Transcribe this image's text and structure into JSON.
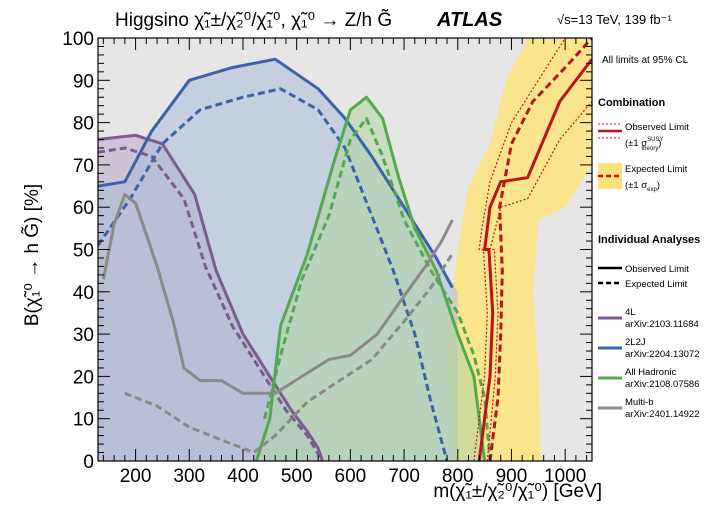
{
  "chart_data": {
    "type": "area",
    "title": "Higgsino χ̃₁±/χ̃₂⁰/χ̃₁⁰,  χ̃₁⁰ → Z/h G̃",
    "experiment": "ATLAS",
    "energy_label": "√s=13 TeV, 139 fb⁻¹",
    "xlabel": "m(χ̃₁±/χ̃₂⁰/χ̃₁⁰) [GeV]",
    "ylabel": "B(χ̃₁⁰ → h G̃) [%]",
    "xlim": [
      130,
      1050
    ],
    "ylim": [
      0,
      100
    ],
    "xticks": [
      200,
      300,
      400,
      500,
      600,
      700,
      800,
      900,
      1000
    ],
    "yticks": [
      0,
      10,
      20,
      30,
      40,
      50,
      60,
      70,
      80,
      90,
      100
    ],
    "grid": false,
    "legend_position": "right",
    "legend": {
      "cl_note": "All limits at 95% CL",
      "combination_header": "Combination",
      "observed_label": "Observed Limit",
      "observed_sub": "(±1 σ",
      "observed_sub_sup": "SUSY",
      "observed_sub_sub": "theory",
      "observed_sub_end": ")",
      "expected_label": "Expected Limit",
      "expected_sub": "(±1 σ",
      "expected_sub_sub": "exp",
      "expected_sub_end": ")",
      "individual_header": "Individual Analyses",
      "ind_observed": "Observed Limit",
      "ind_expected": "Expected Limit"
    },
    "series": [
      {
        "name": "4L",
        "ref": "arXiv:2103.11684",
        "color": "#7b5c8f",
        "fill": "#bba8c8",
        "observed": [
          [
            130,
            76
          ],
          [
            200,
            77
          ],
          [
            250,
            75
          ],
          [
            310,
            63
          ],
          [
            350,
            45
          ],
          [
            400,
            30
          ],
          [
            450,
            20
          ],
          [
            490,
            12
          ],
          [
            520,
            7
          ],
          [
            540,
            3
          ],
          [
            548,
            0
          ]
        ],
        "expected": [
          [
            130,
            73
          ],
          [
            180,
            74
          ],
          [
            230,
            72
          ],
          [
            290,
            62
          ],
          [
            330,
            46
          ],
          [
            380,
            32
          ],
          [
            430,
            22
          ],
          [
            480,
            12
          ],
          [
            520,
            6
          ],
          [
            548,
            0
          ]
        ],
        "region": [
          [
            130,
            0
          ],
          [
            130,
            76
          ],
          [
            200,
            77
          ],
          [
            250,
            75
          ],
          [
            310,
            63
          ],
          [
            350,
            45
          ],
          [
            400,
            30
          ],
          [
            450,
            20
          ],
          [
            490,
            12
          ],
          [
            520,
            7
          ],
          [
            540,
            3
          ],
          [
            548,
            0
          ]
        ]
      },
      {
        "name": "2L2J",
        "ref": "arXiv:2204.13072",
        "color": "#3a63a8",
        "fill": "#a7bcd9",
        "observed": [
          [
            130,
            65
          ],
          [
            180,
            66
          ],
          [
            230,
            78
          ],
          [
            300,
            90
          ],
          [
            380,
            93
          ],
          [
            460,
            95
          ],
          [
            540,
            88
          ],
          [
            590,
            81
          ],
          [
            640,
            72
          ],
          [
            700,
            60
          ],
          [
            760,
            48
          ],
          [
            790,
            41
          ]
        ],
        "expected": [
          [
            130,
            51
          ],
          [
            190,
            62
          ],
          [
            250,
            75
          ],
          [
            320,
            83
          ],
          [
            400,
            86
          ],
          [
            470,
            88
          ],
          [
            540,
            83
          ],
          [
            590,
            74
          ],
          [
            640,
            58
          ],
          [
            680,
            45
          ],
          [
            720,
            30
          ],
          [
            750,
            14
          ],
          [
            780,
            0
          ]
        ],
        "region": [
          [
            130,
            0
          ],
          [
            130,
            65
          ],
          [
            180,
            66
          ],
          [
            230,
            78
          ],
          [
            300,
            90
          ],
          [
            380,
            93
          ],
          [
            460,
            95
          ],
          [
            540,
            88
          ],
          [
            590,
            81
          ],
          [
            640,
            72
          ],
          [
            700,
            60
          ],
          [
            760,
            48
          ],
          [
            800,
            40
          ],
          [
            800,
            0
          ]
        ]
      },
      {
        "name": "All Hadronic",
        "ref": "arXiv:2108.07586",
        "color": "#55a84f",
        "fill": "#afd6a0",
        "observed": [
          [
            425,
            0
          ],
          [
            450,
            10
          ],
          [
            470,
            32
          ],
          [
            520,
            49
          ],
          [
            570,
            71
          ],
          [
            600,
            83
          ],
          [
            630,
            86
          ],
          [
            660,
            81
          ],
          [
            690,
            67
          ],
          [
            720,
            55
          ],
          [
            760,
            45
          ],
          [
            800,
            30
          ],
          [
            830,
            20
          ],
          [
            850,
            0
          ]
        ],
        "expected": [
          [
            440,
            10
          ],
          [
            470,
            25
          ],
          [
            510,
            43
          ],
          [
            560,
            58
          ],
          [
            600,
            76
          ],
          [
            630,
            81
          ],
          [
            660,
            72
          ],
          [
            700,
            57
          ],
          [
            750,
            45
          ],
          [
            800,
            35
          ],
          [
            830,
            25
          ],
          [
            850,
            15
          ],
          [
            860,
            0
          ]
        ],
        "region": [
          [
            425,
            0
          ],
          [
            450,
            10
          ],
          [
            470,
            32
          ],
          [
            520,
            49
          ],
          [
            570,
            71
          ],
          [
            600,
            83
          ],
          [
            630,
            86
          ],
          [
            660,
            81
          ],
          [
            690,
            67
          ],
          [
            720,
            55
          ],
          [
            760,
            45
          ],
          [
            800,
            30
          ],
          [
            830,
            20
          ],
          [
            850,
            0
          ]
        ]
      },
      {
        "name": "Multi-b",
        "ref": "arXiv:2401.14922",
        "color": "#8a8a8a",
        "observed": [
          [
            140,
            43
          ],
          [
            160,
            56
          ],
          [
            180,
            63
          ],
          [
            200,
            61
          ],
          [
            240,
            46
          ],
          [
            270,
            33
          ],
          [
            290,
            22
          ],
          [
            320,
            19
          ],
          [
            360,
            19
          ],
          [
            400,
            16
          ],
          [
            460,
            16
          ],
          [
            510,
            20
          ],
          [
            560,
            24
          ],
          [
            600,
            25
          ],
          [
            650,
            30
          ],
          [
            700,
            39
          ],
          [
            740,
            46
          ],
          [
            770,
            52
          ],
          [
            790,
            57
          ]
        ],
        "expected": [
          [
            180,
            16
          ],
          [
            240,
            13
          ],
          [
            300,
            8
          ],
          [
            360,
            5
          ],
          [
            420,
            2
          ],
          [
            460,
            6
          ],
          [
            520,
            14
          ],
          [
            580,
            19
          ],
          [
            640,
            24
          ],
          [
            700,
            33
          ],
          [
            750,
            41
          ],
          [
            790,
            49
          ]
        ]
      }
    ],
    "combination": {
      "color": "#b8151b",
      "band_color": "#fde37e",
      "observed": [
        [
          850,
          50
        ],
        [
          860,
          60
        ],
        [
          880,
          66
        ],
        [
          930,
          67
        ],
        [
          990,
          85
        ],
        [
          1050,
          95
        ]
      ],
      "observed_up": [
        [
          840,
          50
        ],
        [
          845,
          55
        ],
        [
          860,
          66
        ],
        [
          900,
          80
        ],
        [
          950,
          90
        ],
        [
          1000,
          100
        ]
      ],
      "observed_down": [
        [
          860,
          50
        ],
        [
          880,
          60
        ],
        [
          930,
          62
        ],
        [
          990,
          76
        ],
        [
          1050,
          85
        ]
      ],
      "observed_low": [
        [
          840,
          0
        ],
        [
          860,
          20
        ],
        [
          865,
          35
        ],
        [
          858,
          50
        ]
      ],
      "observed_low_up": [
        [
          830,
          0
        ],
        [
          850,
          20
        ],
        [
          855,
          35
        ],
        [
          848,
          50
        ]
      ],
      "observed_low_down": [
        [
          855,
          0
        ],
        [
          870,
          20
        ],
        [
          875,
          35
        ],
        [
          868,
          50
        ]
      ],
      "expected": [
        [
          860,
          0
        ],
        [
          875,
          15
        ],
        [
          880,
          30
        ],
        [
          883,
          45
        ],
        [
          878,
          60
        ],
        [
          900,
          75
        ],
        [
          940,
          85
        ],
        [
          1000,
          93
        ],
        [
          1050,
          100
        ]
      ],
      "band": [
        [
          790,
          0
        ],
        [
          780,
          30
        ],
        [
          800,
          50
        ],
        [
          820,
          65
        ],
        [
          860,
          75
        ],
        [
          890,
          90
        ],
        [
          930,
          100
        ],
        [
          1050,
          100
        ],
        [
          1050,
          70
        ],
        [
          1000,
          60
        ],
        [
          950,
          57
        ],
        [
          940,
          40
        ],
        [
          950,
          20
        ],
        [
          955,
          0
        ]
      ]
    }
  }
}
